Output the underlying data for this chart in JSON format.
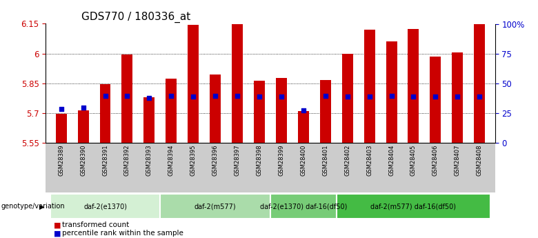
{
  "title": "GDS770 / 180336_at",
  "samples": [
    "GSM28389",
    "GSM28390",
    "GSM28391",
    "GSM28392",
    "GSM28393",
    "GSM28394",
    "GSM28395",
    "GSM28396",
    "GSM28397",
    "GSM28398",
    "GSM28399",
    "GSM28400",
    "GSM28401",
    "GSM28402",
    "GSM28403",
    "GSM28404",
    "GSM28405",
    "GSM28406",
    "GSM28407",
    "GSM28408"
  ],
  "bar_values": [
    5.695,
    5.715,
    5.845,
    5.995,
    5.78,
    5.875,
    6.145,
    5.895,
    6.148,
    5.862,
    5.877,
    5.71,
    5.867,
    5.998,
    6.12,
    6.06,
    6.125,
    5.985,
    6.005,
    6.148
  ],
  "blue_dots": [
    5.72,
    5.728,
    5.785,
    5.785,
    5.775,
    5.785,
    5.783,
    5.785,
    5.785,
    5.784,
    5.783,
    5.715,
    5.785,
    5.784,
    5.784,
    5.785,
    5.783,
    5.784,
    5.784,
    5.783
  ],
  "bar_color": "#CC0000",
  "dot_color": "#0000CC",
  "ylim": [
    5.55,
    6.15
  ],
  "yticks": [
    5.55,
    5.7,
    5.85,
    6.0,
    6.15
  ],
  "ytick_labels": [
    "5.55",
    "5.7",
    "5.85",
    "6",
    "6.15"
  ],
  "right_yticks": [
    0,
    25,
    50,
    75,
    100
  ],
  "right_ytick_labels": [
    "0",
    "25",
    "50",
    "75",
    "100%"
  ],
  "groups": [
    {
      "label": "daf-2(e1370)",
      "start": 0,
      "end": 5,
      "color": "#d4f0d4"
    },
    {
      "label": "daf-2(m577)",
      "start": 5,
      "end": 10,
      "color": "#aadcaa"
    },
    {
      "label": "daf-2(e1370) daf-16(df50)",
      "start": 10,
      "end": 13,
      "color": "#77cc77"
    },
    {
      "label": "daf-2(m577) daf-16(df50)",
      "start": 13,
      "end": 20,
      "color": "#44bb44"
    }
  ],
  "group_label": "genotype/variation",
  "legend_items": [
    {
      "label": "transformed count",
      "color": "#CC0000"
    },
    {
      "label": "percentile rank within the sample",
      "color": "#0000CC"
    }
  ],
  "bar_width": 0.5,
  "xlabel_fontsize": 6.5,
  "title_fontsize": 11
}
